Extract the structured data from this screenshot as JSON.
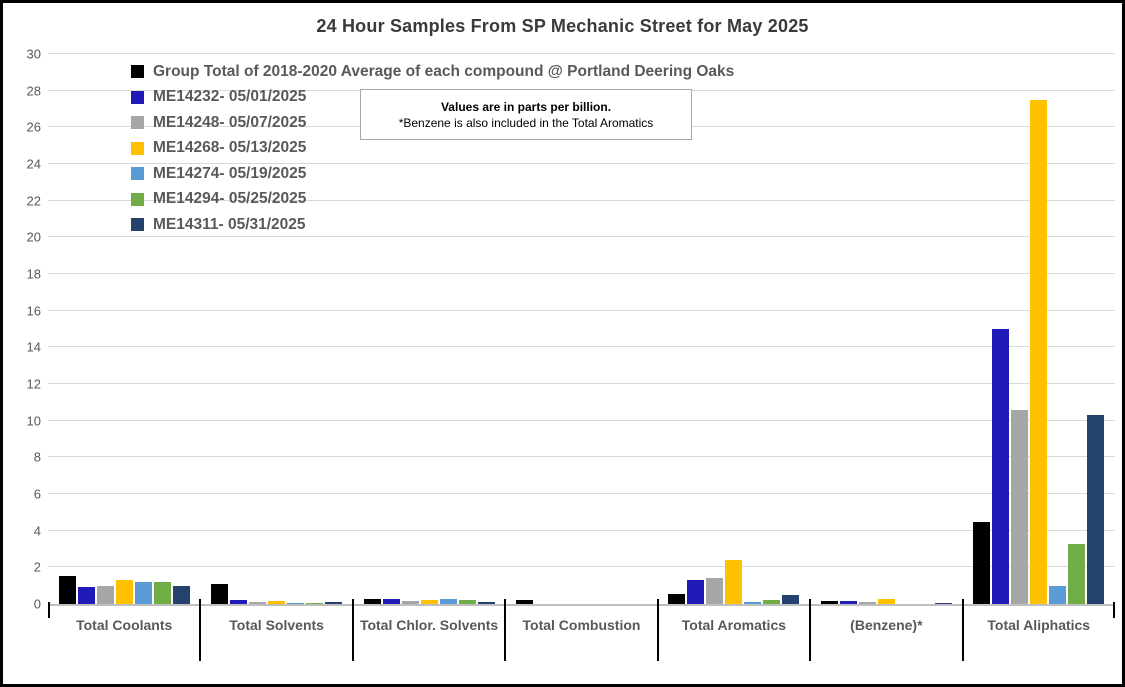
{
  "chart_data": {
    "type": "bar",
    "title": "24 Hour Samples From SP Mechanic Street for May 2025",
    "value_unit": "parts per billion",
    "annotation": {
      "line1": "Values are in parts per billion.",
      "line2": "*Benzene is also included in the Total Aromatics"
    },
    "categories": [
      "Total Coolants",
      "Total Solvents",
      "Total Chlor. Solvents",
      "Total Combustion",
      "Total Aromatics",
      "(Benzene)*",
      "Total Aliphatics"
    ],
    "series": [
      {
        "name": "Group Total of 2018-2020 Average of each compound @ Portland Deering Oaks",
        "color": "#000000",
        "values": [
          1.55,
          1.1,
          0.3,
          0.2,
          0.55,
          0.15,
          4.5
        ]
      },
      {
        "name": "ME14232- 05/01/2025",
        "color": "#1f1ab8",
        "values": [
          0.95,
          0.2,
          0.25,
          0,
          1.3,
          0.15,
          15.0
        ]
      },
      {
        "name": "ME14248- 05/07/2025",
        "color": "#a6a6a6",
        "values": [
          1.0,
          0.12,
          0.15,
          0,
          1.4,
          0.12,
          10.6
        ]
      },
      {
        "name": "ME14268- 05/13/2025",
        "color": "#ffc000",
        "values": [
          1.3,
          0.17,
          0.2,
          0,
          2.4,
          0.3,
          27.5
        ]
      },
      {
        "name": "ME14274- 05/19/2025",
        "color": "#5b9bd5",
        "values": [
          1.2,
          0.08,
          0.25,
          0,
          0.1,
          0,
          1.0
        ]
      },
      {
        "name": "ME14294- 05/25/2025",
        "color": "#70ad47",
        "values": [
          1.2,
          0.07,
          0.2,
          0,
          0.2,
          0,
          3.3
        ]
      },
      {
        "name": "ME14311- 05/31/2025",
        "color": "#25426f",
        "values": [
          1.0,
          0.12,
          0.1,
          0,
          0.5,
          0.05,
          10.3
        ]
      }
    ],
    "ylim": [
      0,
      30
    ],
    "ytick_step": 2,
    "grid": true,
    "legend_position": "top-left",
    "colors": {
      "gridline": "#d9d9d9",
      "axis_line": "#bfbfbf",
      "title_text": "#3a3a3a",
      "label_text": "#595959",
      "divider": "#000000"
    }
  }
}
